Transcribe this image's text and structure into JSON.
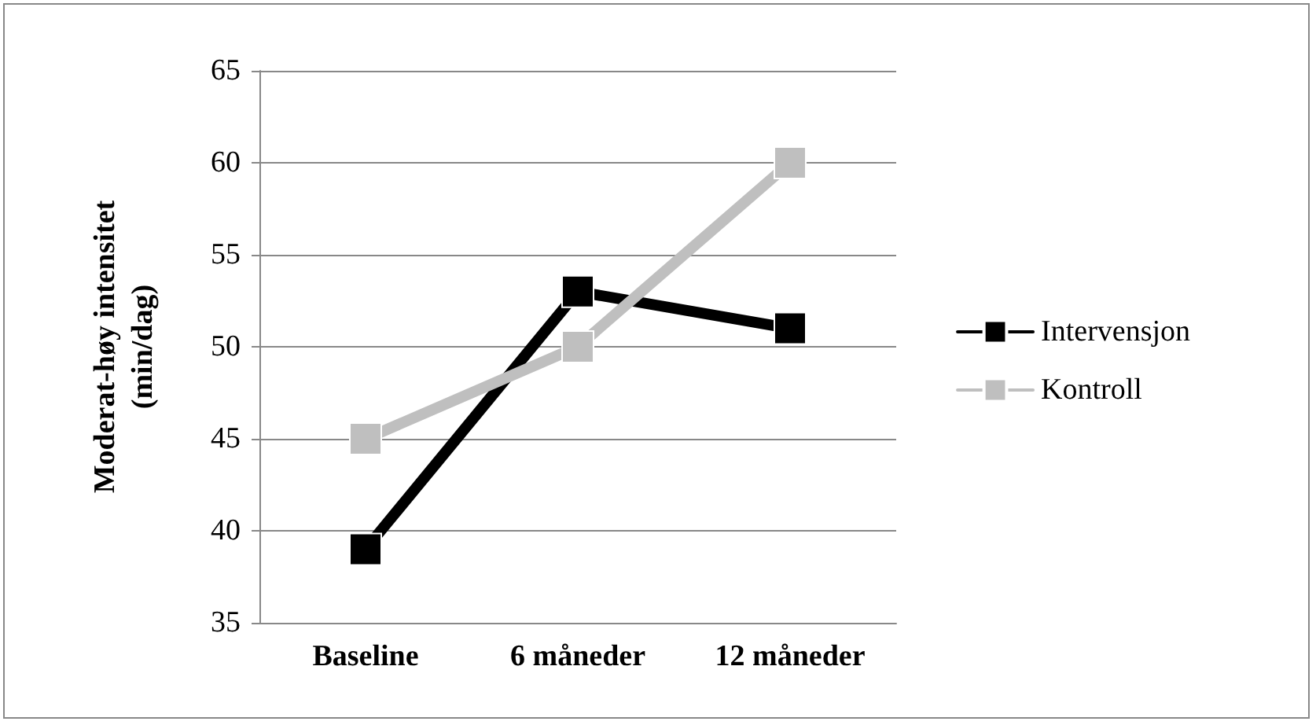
{
  "chart_data": {
    "type": "line",
    "ylabel": "Moderat-høy intensitet\n(min/dag)",
    "categories": [
      "Baseline",
      "6 måneder",
      "12 måneder"
    ],
    "series": [
      {
        "name": "Intervensjon",
        "color": "#000000",
        "values": [
          39,
          53,
          51
        ]
      },
      {
        "name": "Kontroll",
        "color": "#bfbfbf",
        "values": [
          45,
          50,
          60
        ]
      }
    ],
    "ylim": [
      35,
      65
    ],
    "yticks": [
      35,
      40,
      45,
      50,
      55,
      60,
      65
    ],
    "grid": "y",
    "legend": "right",
    "marker": "square",
    "line_style": "solid"
  }
}
